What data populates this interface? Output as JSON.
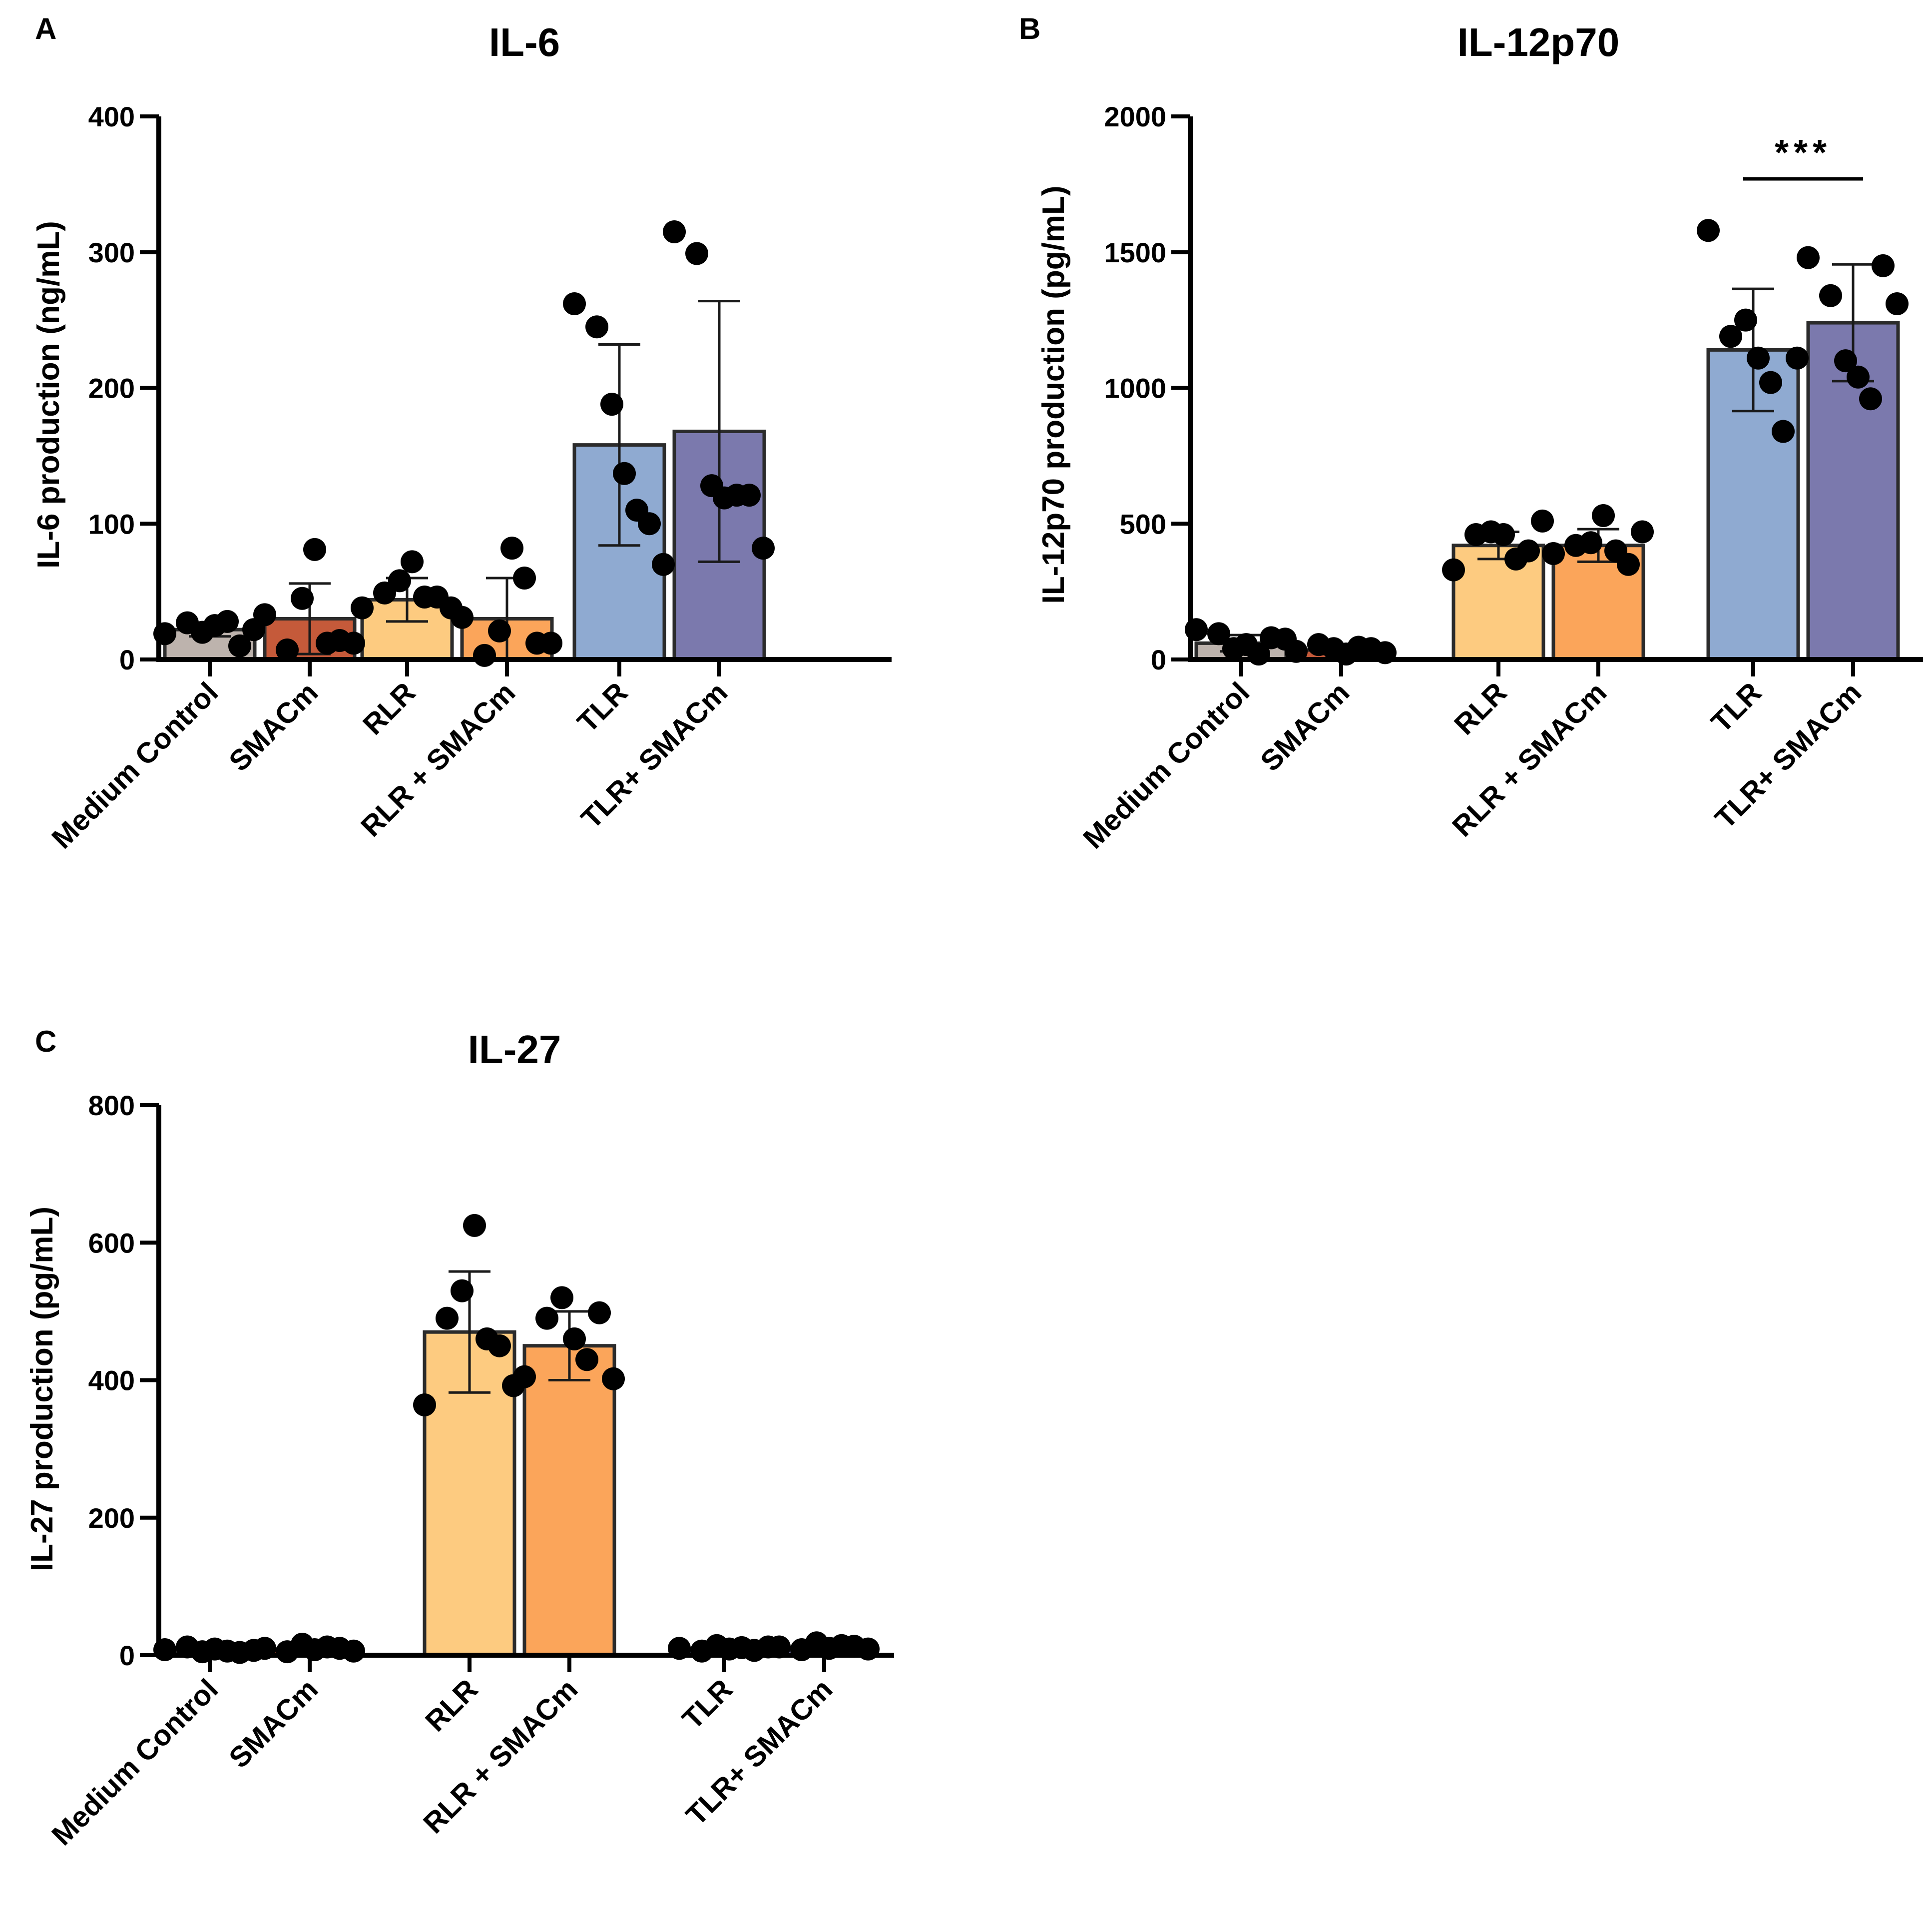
{
  "chart_data": [
    {
      "panel": "A",
      "type": "bar",
      "title": "IL-6",
      "ylabel": "IL-6 production (ng/mL)",
      "xlabel": "",
      "ylim": [
        0,
        400
      ],
      "yticks": [
        0,
        100,
        200,
        300,
        400
      ],
      "categories": [
        "Medium Control",
        "SMACm",
        "RLR",
        "RLR + SMACm",
        "TLR",
        "TLR+ SMACm"
      ],
      "colors": [
        "#bdb3ad",
        "#c55a3a",
        "#fdcb80",
        "#fba55a",
        "#8faad1",
        "#7b79ad"
      ],
      "values": [
        22,
        30,
        44,
        30,
        158,
        168
      ],
      "errors": [
        5,
        26,
        16,
        30,
        74,
        96
      ],
      "points": [
        [
          19,
          27,
          20,
          25,
          28,
          10,
          22
        ],
        [
          33,
          7,
          45,
          81,
          12,
          14,
          12
        ],
        [
          38,
          49,
          58,
          72,
          46,
          46,
          38
        ],
        [
          31,
          3,
          21,
          82,
          60,
          12,
          12
        ],
        [
          262,
          245,
          188,
          137,
          110,
          100,
          70
        ],
        [
          315,
          299,
          128,
          119,
          121,
          121,
          82
        ]
      ],
      "significance": null
    },
    {
      "panel": "B",
      "type": "bar",
      "title": "IL-12p70",
      "ylabel": "IL-12p70 production (pg/mL)",
      "xlabel": "",
      "ylim": [
        0,
        2000
      ],
      "yticks": [
        0,
        500,
        1000,
        1500,
        2000
      ],
      "categories": [
        "Medium Control",
        "SMACm",
        "RLR",
        "RLR + SMACm",
        "TLR",
        "TLR+ SMACm"
      ],
      "colors": [
        "#bdb3ad",
        "#c55a3a",
        "#fdcb80",
        "#fba55a",
        "#8faad1",
        "#7b79ad"
      ],
      "values": [
        60,
        35,
        420,
        420,
        1140,
        1240
      ],
      "errors": [
        30,
        15,
        50,
        60,
        225,
        215
      ],
      "points": [
        [
          110,
          95,
          40,
          55,
          20,
          80,
          75
        ],
        [
          30,
          55,
          40,
          20,
          45,
          40,
          25
        ],
        [
          330,
          460,
          470,
          460,
          370,
          400,
          510
        ],
        [
          390,
          420,
          430,
          530,
          400,
          350,
          470
        ],
        [
          1580,
          1190,
          1250,
          1110,
          1020,
          840,
          1110
        ],
        [
          1480,
          1340,
          1100,
          1040,
          960,
          1450,
          1310
        ]
      ],
      "significance": {
        "label": "***",
        "from": 4,
        "to": 5,
        "y": 1770
      }
    },
    {
      "panel": "C",
      "type": "bar",
      "title": "IL-27",
      "ylabel": "IL-27 production (pg/mL)",
      "xlabel": "",
      "ylim": [
        0,
        800
      ],
      "yticks": [
        0,
        200,
        400,
        600,
        800
      ],
      "categories": [
        "Medium Control",
        "SMACm",
        "RLR",
        "RLR + SMACm",
        "TLR",
        "TLR+ SMACm"
      ],
      "colors": [
        "#bdb3ad",
        "#c55a3a",
        "#fdcb80",
        "#fba55a",
        "#8faad1",
        "#7b79ad"
      ],
      "values": [
        6,
        9,
        470,
        450,
        9,
        11
      ],
      "errors": [
        3,
        4,
        88,
        50,
        3,
        4
      ],
      "points": [
        [
          8,
          12,
          5,
          9,
          6,
          4,
          7
        ],
        [
          10,
          5,
          16,
          8,
          12,
          10,
          6
        ],
        [
          364,
          490,
          530,
          625,
          460,
          450,
          392
        ],
        [
          405,
          490,
          520,
          460,
          430,
          498,
          402
        ],
        [
          10,
          6,
          14,
          9,
          11,
          7,
          12
        ],
        [
          12,
          8,
          18,
          10,
          14,
          13,
          9
        ]
      ],
      "significance": null
    }
  ]
}
